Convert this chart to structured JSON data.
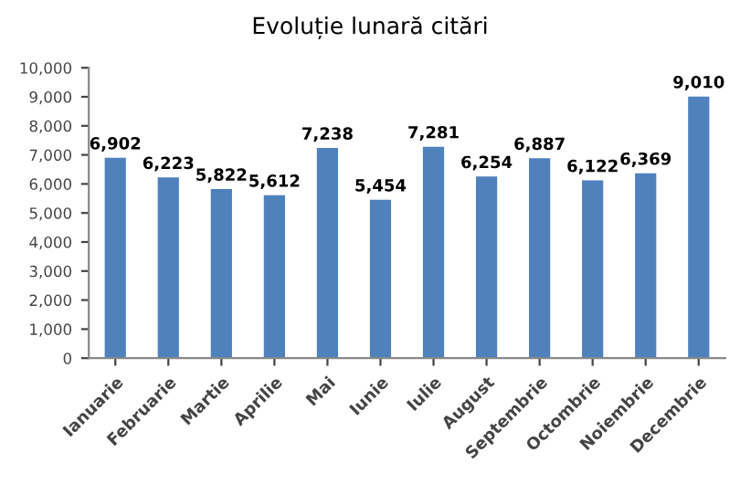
{
  "chart_data": {
    "type": "bar",
    "title": "Evoluție lunară citări",
    "categories": [
      "Ianuarie",
      "Februarie",
      "Martie",
      "Aprilie",
      "Mai",
      "Iunie",
      "Iulie",
      "August",
      "Septembrie",
      "Octombrie",
      "Noiembrie",
      "Decembrie"
    ],
    "values": [
      6902,
      6223,
      5822,
      5612,
      7238,
      5454,
      7281,
      6254,
      6887,
      6122,
      6369,
      9010
    ],
    "color": "#4f81bd",
    "ylim": [
      0,
      10000
    ],
    "yticks": [
      0,
      {
        "value": 1000,
        "label": "1,000"
      },
      {
        "value": 2000,
        "label": "2,000"
      },
      {
        "value": 3000,
        "label": "3,000"
      },
      {
        "value": 4000,
        "label": "4,000"
      },
      {
        "value": 5000,
        "label": "5,000"
      },
      {
        "value": 6000,
        "label": "6,000"
      },
      {
        "value": 7000,
        "label": "7,000"
      },
      {
        "value": 8000,
        "label": "8,000"
      },
      {
        "value": 9000,
        "label": "9,000"
      },
      {
        "value": 10000,
        "label": "10,000"
      }
    ],
    "value_labels": [
      "6,902",
      "6,223",
      "5,822",
      "5,612",
      "7,238",
      "5,454",
      "7,281",
      "6,254",
      "6,887",
      "6,122",
      "6,369",
      "9,010"
    ],
    "grid": false,
    "legend": false
  }
}
